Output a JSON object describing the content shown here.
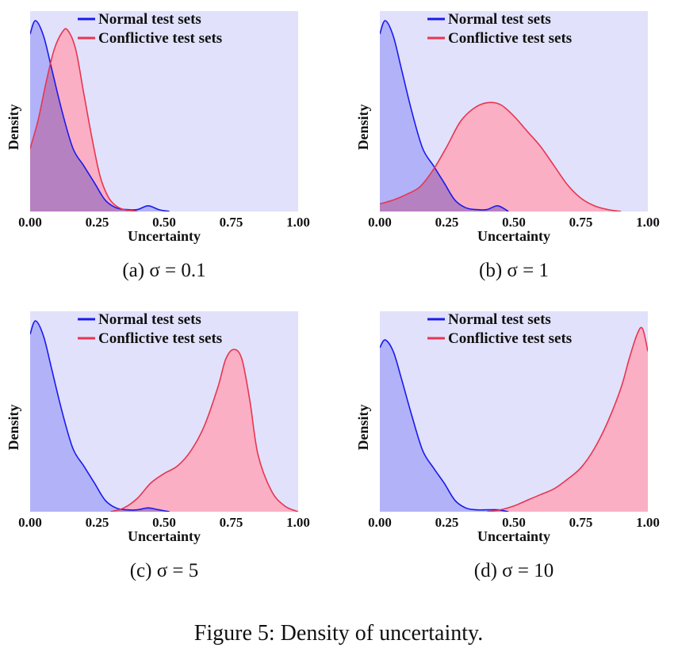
{
  "figure_caption": "Figure 5: Density of uncertainty.",
  "colors": {
    "normal_line": "#1a1aee",
    "normal_fill": "#a9a9f7",
    "conflictive_line": "#e8354f",
    "conflictive_fill": "#ffa3b8",
    "overlap_fill": "#c46fc6",
    "plot_background": "#e1e1fb"
  },
  "chart_data": [
    {
      "type": "area",
      "caption": "(a) σ = 0.1",
      "xlabel": "Uncertainty",
      "ylabel": "Density",
      "xlim": [
        0,
        1
      ],
      "ylim": [
        0,
        1.05
      ],
      "xticks": [
        "0.00",
        "0.25",
        "0.50",
        "0.75",
        "1.00"
      ],
      "legend_position": "top",
      "series": [
        {
          "name": "Normal test sets",
          "color": "#1a1aee",
          "x": [
            0,
            0.02,
            0.05,
            0.08,
            0.12,
            0.16,
            0.2,
            0.24,
            0.28,
            0.32,
            0.36,
            0.4,
            0.44,
            0.48,
            0.52
          ],
          "y": [
            0.93,
            1.0,
            0.92,
            0.75,
            0.52,
            0.33,
            0.24,
            0.15,
            0.06,
            0.02,
            0.01,
            0.01,
            0.03,
            0.01,
            0.0
          ]
        },
        {
          "name": "Conflictive test sets",
          "color": "#e8354f",
          "x": [
            0,
            0.03,
            0.06,
            0.09,
            0.12,
            0.14,
            0.17,
            0.2,
            0.23,
            0.26,
            0.29,
            0.32,
            0.35,
            0.38,
            0.4
          ],
          "y": [
            0.33,
            0.48,
            0.68,
            0.85,
            0.94,
            0.95,
            0.85,
            0.62,
            0.39,
            0.19,
            0.08,
            0.03,
            0.01,
            0.005,
            0.0
          ]
        }
      ]
    },
    {
      "type": "area",
      "caption": "(b) σ = 1",
      "xlabel": "Uncertainty",
      "ylabel": "Density",
      "xlim": [
        0,
        1
      ],
      "ylim": [
        0,
        1.05
      ],
      "xticks": [
        "0.00",
        "0.25",
        "0.50",
        "0.75",
        "1.00"
      ],
      "legend_position": "top",
      "series": [
        {
          "name": "Normal test sets",
          "color": "#1a1aee",
          "x": [
            0,
            0.02,
            0.05,
            0.08,
            0.12,
            0.16,
            0.2,
            0.24,
            0.28,
            0.32,
            0.36,
            0.4,
            0.44,
            0.48
          ],
          "y": [
            0.93,
            1.0,
            0.92,
            0.75,
            0.52,
            0.33,
            0.24,
            0.15,
            0.06,
            0.02,
            0.01,
            0.01,
            0.03,
            0.0
          ]
        },
        {
          "name": "Conflictive test sets",
          "color": "#e8354f",
          "x": [
            0,
            0.05,
            0.1,
            0.15,
            0.2,
            0.25,
            0.3,
            0.35,
            0.4,
            0.45,
            0.5,
            0.55,
            0.6,
            0.65,
            0.7,
            0.75,
            0.8,
            0.85,
            0.9
          ],
          "y": [
            0.04,
            0.06,
            0.09,
            0.13,
            0.22,
            0.34,
            0.47,
            0.54,
            0.57,
            0.56,
            0.5,
            0.42,
            0.34,
            0.24,
            0.14,
            0.07,
            0.03,
            0.01,
            0.0
          ]
        }
      ]
    },
    {
      "type": "area",
      "caption": "(c) σ = 5",
      "xlabel": "Uncertainty",
      "ylabel": "Density",
      "xlim": [
        0,
        1
      ],
      "ylim": [
        0,
        1.05
      ],
      "xticks": [
        "0.00",
        "0.25",
        "0.50",
        "0.75",
        "1.00"
      ],
      "legend_position": "top",
      "series": [
        {
          "name": "Normal test sets",
          "color": "#1a1aee",
          "x": [
            0,
            0.02,
            0.05,
            0.08,
            0.12,
            0.16,
            0.2,
            0.24,
            0.28,
            0.32,
            0.36,
            0.4,
            0.44,
            0.48,
            0.52
          ],
          "y": [
            0.93,
            1.0,
            0.92,
            0.75,
            0.52,
            0.33,
            0.24,
            0.15,
            0.06,
            0.02,
            0.01,
            0.01,
            0.02,
            0.01,
            0.0
          ]
        },
        {
          "name": "Conflictive test sets",
          "color": "#e8354f",
          "x": [
            0.3,
            0.35,
            0.4,
            0.45,
            0.5,
            0.55,
            0.6,
            0.65,
            0.7,
            0.73,
            0.76,
            0.79,
            0.82,
            0.85,
            0.9,
            0.95,
            1.0
          ],
          "y": [
            0.0,
            0.02,
            0.07,
            0.15,
            0.2,
            0.24,
            0.32,
            0.45,
            0.65,
            0.8,
            0.85,
            0.8,
            0.58,
            0.3,
            0.11,
            0.03,
            0.0
          ]
        }
      ]
    },
    {
      "type": "area",
      "caption": "(d) σ = 10",
      "xlabel": "Uncertainty",
      "ylabel": "Density",
      "xlim": [
        0,
        1
      ],
      "ylim": [
        0,
        1.05
      ],
      "xticks": [
        "0.00",
        "0.25",
        "0.50",
        "0.75",
        "1.00"
      ],
      "legend_position": "top",
      "series": [
        {
          "name": "Normal test sets",
          "color": "#1a1aee",
          "x": [
            0,
            0.02,
            0.05,
            0.08,
            0.12,
            0.16,
            0.2,
            0.24,
            0.28,
            0.32,
            0.36,
            0.4,
            0.44,
            0.48
          ],
          "y": [
            0.86,
            0.9,
            0.84,
            0.7,
            0.5,
            0.32,
            0.23,
            0.15,
            0.06,
            0.02,
            0.01,
            0.01,
            0.01,
            0.0
          ]
        },
        {
          "name": "Conflictive test sets",
          "color": "#e8354f",
          "x": [
            0.4,
            0.45,
            0.5,
            0.55,
            0.6,
            0.65,
            0.7,
            0.75,
            0.8,
            0.85,
            0.9,
            0.93,
            0.96,
            0.98,
            1.0
          ],
          "y": [
            0.0,
            0.01,
            0.03,
            0.06,
            0.09,
            0.12,
            0.17,
            0.23,
            0.33,
            0.47,
            0.65,
            0.8,
            0.93,
            0.96,
            0.84
          ]
        }
      ]
    }
  ]
}
